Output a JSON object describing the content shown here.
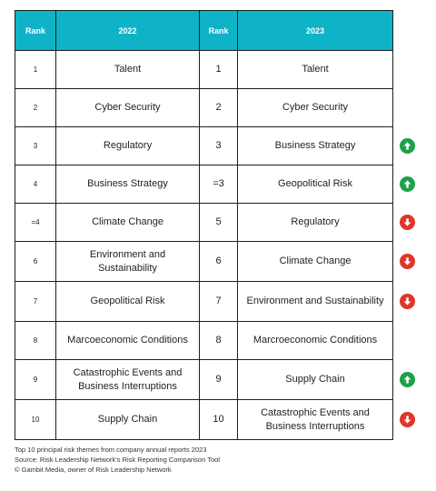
{
  "table": {
    "headers": {
      "rank_2022": "Rank",
      "year_2022": "2022",
      "rank_2023": "Rank",
      "year_2023": "2023"
    },
    "rows": [
      {
        "rank_2022": "1",
        "risk_2022": "Talent",
        "rank_2023": "1",
        "risk_2023": "Talent",
        "change": "none"
      },
      {
        "rank_2022": "2",
        "risk_2022": "Cyber Security",
        "rank_2023": "2",
        "risk_2023": "Cyber Security",
        "change": "none"
      },
      {
        "rank_2022": "3",
        "risk_2022": "Regulatory",
        "rank_2023": "3",
        "risk_2023": "Business Strategy",
        "change": "up"
      },
      {
        "rank_2022": "4",
        "risk_2022": "Business Strategy",
        "rank_2023": "=3",
        "risk_2023": "Geopolitical Risk",
        "change": "up"
      },
      {
        "rank_2022": "=4",
        "risk_2022": "Climate Change",
        "rank_2023": "5",
        "risk_2023": "Regulatory",
        "change": "down"
      },
      {
        "rank_2022": "6",
        "risk_2022": "Environment and Sustainability",
        "rank_2023": "6",
        "risk_2023": "Climate Change",
        "change": "down"
      },
      {
        "rank_2022": "7",
        "risk_2022": "Geopolitical Risk",
        "rank_2023": "7",
        "risk_2023": "Environment and Sustainability",
        "change": "down"
      },
      {
        "rank_2022": "8",
        "risk_2022": "Marcoeconomic Conditions",
        "rank_2023": "8",
        "risk_2023": "Marcroeconomic Conditions",
        "change": "none"
      },
      {
        "rank_2022": "9",
        "risk_2022": "Catastrophic Events and Business Interruptions",
        "rank_2023": "9",
        "risk_2023": "Supply Chain",
        "change": "up"
      },
      {
        "rank_2022": "10",
        "risk_2022": "Supply Chain",
        "rank_2023": "10",
        "risk_2023": "Catastrophic Events and Business Interruptions",
        "change": "down"
      }
    ]
  },
  "indicators": {
    "up_icon": "arrow-up-circle-icon",
    "down_icon": "arrow-down-circle-icon"
  },
  "colors": {
    "header_bg": "#0fb3c8",
    "up": "#1ea24a",
    "down": "#e0362c"
  },
  "footer": {
    "line1": "Top 10 principal risk themes from company annual reports 2023",
    "line2": "Source: Risk Leadership Network's Risk Reporting Comparison Tool",
    "line3": "© Gambit Media, owner of Risk Leadership Network"
  }
}
